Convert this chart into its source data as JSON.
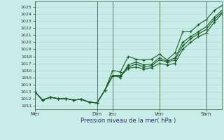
{
  "bg_color": "#c8ece8",
  "grid_color": "#aad4d0",
  "line_color": "#1a5c28",
  "xlabel": "Pression niveau de la mer( hPa )",
  "ylim": [
    1010.5,
    1025.8
  ],
  "ytick_vals": [
    1011,
    1012,
    1013,
    1014,
    1015,
    1016,
    1017,
    1018,
    1019,
    1020,
    1021,
    1022,
    1023,
    1024,
    1025
  ],
  "xtick_labels": [
    "Mer",
    "Dim",
    "Jeu",
    "Ven",
    "Sam"
  ],
  "xtick_pos": [
    0,
    8,
    10,
    16,
    22
  ],
  "vline_pos": [
    0,
    8,
    10,
    16,
    22
  ],
  "xlim": [
    0,
    24
  ],
  "series": [
    [
      1013.0,
      1011.8,
      1012.2,
      1012.0,
      1012.0,
      1011.8,
      1011.9,
      1011.5,
      1011.4,
      1013.2,
      1016.0,
      1015.8,
      1018.0,
      1017.6,
      1017.5,
      1017.6,
      1018.3,
      1017.5,
      1018.5,
      1021.5,
      1021.5,
      1022.5,
      1023.2,
      1024.5,
      1025.2
    ],
    [
      1013.0,
      1011.8,
      1012.2,
      1012.0,
      1012.0,
      1011.8,
      1011.9,
      1011.5,
      1011.4,
      1013.2,
      1015.3,
      1015.0,
      1016.8,
      1017.2,
      1016.8,
      1016.9,
      1017.8,
      1017.3,
      1017.8,
      1020.0,
      1020.8,
      1021.5,
      1022.2,
      1023.5,
      1024.5
    ],
    [
      1013.0,
      1011.8,
      1012.2,
      1012.0,
      1012.0,
      1011.8,
      1011.9,
      1011.5,
      1011.4,
      1013.2,
      1015.3,
      1015.3,
      1016.5,
      1016.9,
      1016.5,
      1016.7,
      1017.5,
      1017.2,
      1017.5,
      1019.5,
      1020.5,
      1021.2,
      1021.8,
      1023.2,
      1024.2
    ],
    [
      1013.0,
      1011.8,
      1012.2,
      1012.0,
      1012.0,
      1011.8,
      1011.9,
      1011.5,
      1011.4,
      1013.2,
      1015.2,
      1015.2,
      1016.3,
      1016.5,
      1016.2,
      1016.4,
      1017.0,
      1016.8,
      1017.0,
      1019.0,
      1020.0,
      1020.8,
      1021.3,
      1022.8,
      1024.0
    ]
  ]
}
